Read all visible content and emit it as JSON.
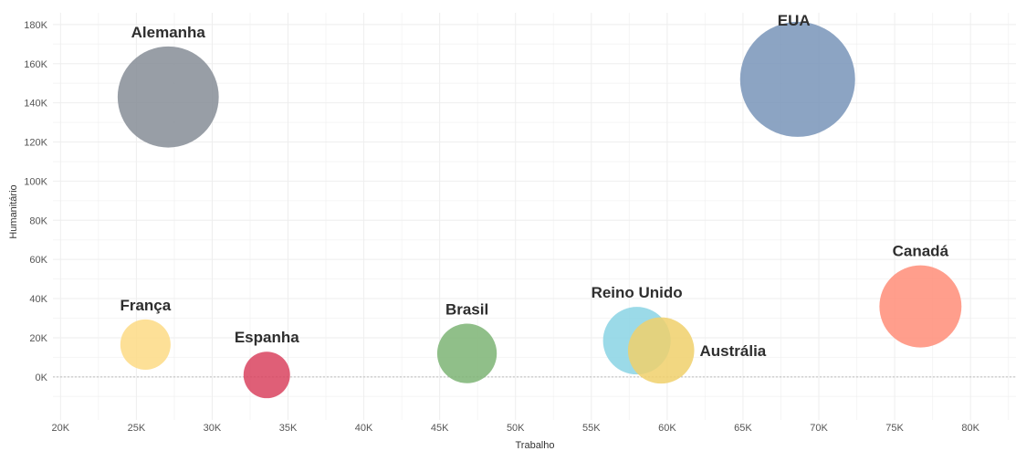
{
  "chart_data": {
    "type": "scatter",
    "variant": "bubble",
    "title": "",
    "xlabel": "Trabalho",
    "ylabel": "Humanitário",
    "xlim": [
      19500,
      83000
    ],
    "ylim": [
      -22000,
      186000
    ],
    "x_ticks": [
      {
        "value": 20000,
        "label": "20K"
      },
      {
        "value": 25000,
        "label": "25K"
      },
      {
        "value": 30000,
        "label": "30K"
      },
      {
        "value": 35000,
        "label": "35K"
      },
      {
        "value": 40000,
        "label": "40K"
      },
      {
        "value": 45000,
        "label": "45K"
      },
      {
        "value": 50000,
        "label": "50K"
      },
      {
        "value": 55000,
        "label": "55K"
      },
      {
        "value": 60000,
        "label": "60K"
      },
      {
        "value": 65000,
        "label": "65K"
      },
      {
        "value": 70000,
        "label": "70K"
      },
      {
        "value": 75000,
        "label": "75K"
      },
      {
        "value": 80000,
        "label": "80K"
      }
    ],
    "y_ticks": [
      {
        "value": 0,
        "label": "0K"
      },
      {
        "value": 20000,
        "label": "20K"
      },
      {
        "value": 40000,
        "label": "40K"
      },
      {
        "value": 60000,
        "label": "60K"
      },
      {
        "value": 80000,
        "label": "80K"
      },
      {
        "value": 100000,
        "label": "100K"
      },
      {
        "value": 120000,
        "label": "120K"
      },
      {
        "value": 140000,
        "label": "140K"
      },
      {
        "value": 160000,
        "label": "160K"
      },
      {
        "value": 180000,
        "label": "180K"
      }
    ],
    "grid": true,
    "legend": "none",
    "points": [
      {
        "label": "Alemanha",
        "x": 27100,
        "y": 143000,
        "size": 170000,
        "color": "#868d96"
      },
      {
        "label": "EUA",
        "x": 68600,
        "y": 152000,
        "size": 220000,
        "color": "#7894b8"
      },
      {
        "label": "Canadá",
        "x": 76700,
        "y": 36000,
        "size": 112000,
        "color": "#ff8d78"
      },
      {
        "label": "França",
        "x": 25600,
        "y": 16500,
        "size": 42000,
        "color": "#fddb85"
      },
      {
        "label": "Espanha",
        "x": 33600,
        "y": 1000,
        "size": 36000,
        "color": "#d9435f"
      },
      {
        "label": "Brasil",
        "x": 46800,
        "y": 12000,
        "size": 59000,
        "color": "#7db474"
      },
      {
        "label": "Reino Unido",
        "x": 58000,
        "y": 18500,
        "size": 76000,
        "color": "#8ad4e4"
      },
      {
        "label": "Austrália",
        "x": 59600,
        "y": 13500,
        "size": 73000,
        "color": "#f0d06b"
      }
    ]
  }
}
